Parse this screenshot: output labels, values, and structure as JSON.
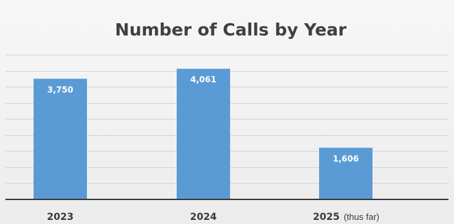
{
  "chart_data": {
    "type": "bar",
    "title": "Number of Calls by Year",
    "xlabel": "",
    "ylabel": "",
    "categories": [
      "2023",
      "2024",
      "2025"
    ],
    "category_notes": [
      "",
      "",
      "(thus far)"
    ],
    "values": [
      3750,
      4061,
      1606
    ],
    "data_labels": [
      "3,750",
      "4,061",
      "1,606"
    ],
    "ylim": [
      0,
      4500
    ],
    "gridline_step": 500,
    "grid": true,
    "legend": "none",
    "colors": {
      "bar": "#5b9bd5",
      "gridline": "#d4d4d4",
      "axis": "#3a3a3a",
      "title": "#404040"
    }
  }
}
